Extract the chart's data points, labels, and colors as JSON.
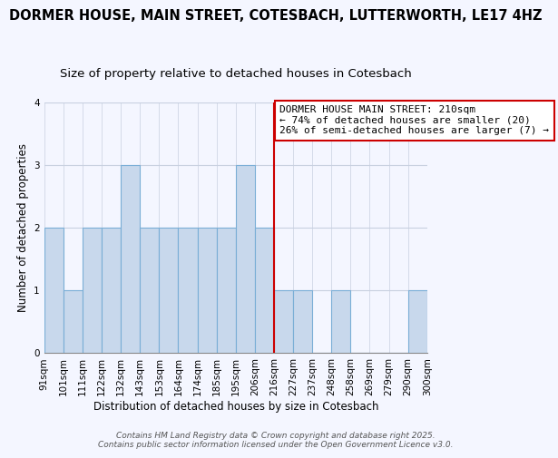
{
  "title": "DORMER HOUSE, MAIN STREET, COTESBACH, LUTTERWORTH, LE17 4HZ",
  "subtitle": "Size of property relative to detached houses in Cotesbach",
  "xlabel": "Distribution of detached houses by size in Cotesbach",
  "ylabel": "Number of detached properties",
  "bar_labels": [
    "91sqm",
    "101sqm",
    "111sqm",
    "122sqm",
    "132sqm",
    "143sqm",
    "153sqm",
    "164sqm",
    "174sqm",
    "185sqm",
    "195sqm",
    "206sqm",
    "216sqm",
    "227sqm",
    "237sqm",
    "248sqm",
    "258sqm",
    "269sqm",
    "279sqm",
    "290sqm",
    "300sqm"
  ],
  "bar_values": [
    2,
    1,
    2,
    2,
    3,
    2,
    2,
    2,
    2,
    2,
    3,
    2,
    1,
    1,
    0,
    1,
    0,
    0,
    0,
    1
  ],
  "bar_color": "#c8d8ec",
  "bar_edge_color": "#7aaed6",
  "ylim": [
    0,
    4
  ],
  "yticks": [
    0,
    1,
    2,
    3,
    4
  ],
  "annotation_line1": "DORMER HOUSE MAIN STREET: 210sqm",
  "annotation_line2": "← 74% of detached houses are smaller (20)",
  "annotation_line3": "26% of semi-detached houses are larger (7) →",
  "ref_line_color": "#cc0000",
  "footer_text": "Contains HM Land Registry data © Crown copyright and database right 2025.\nContains public sector information licensed under the Open Government Licence v3.0.",
  "background_color": "#f4f6ff",
  "grid_color": "#c8d0e0",
  "title_fontsize": 10.5,
  "subtitle_fontsize": 9.5,
  "axis_label_fontsize": 8.5,
  "tick_fontsize": 7.5,
  "annotation_fontsize": 8,
  "footer_fontsize": 6.5
}
